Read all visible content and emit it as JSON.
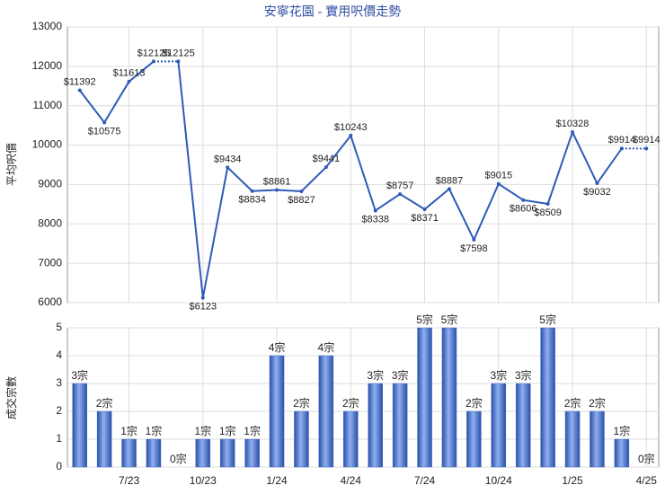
{
  "chart_data": [
    {
      "type": "line",
      "title": "安寧花園 - 實用呎價走勢",
      "y_label": "平均呎價",
      "color": "#2f5bb7",
      "values": [
        11392,
        10575,
        11613,
        12125,
        12125,
        6123,
        9434,
        8834,
        8861,
        8827,
        9441,
        10243,
        8338,
        8757,
        8371,
        8887,
        7598,
        9015,
        8606,
        8509,
        10328,
        9032,
        9914,
        9914
      ],
      "value_labels": [
        "$11392",
        "$10575",
        "$11613",
        "$12125",
        "$12125",
        "$6123",
        "$9434",
        "$8834",
        "$8861",
        "$8827",
        "$9441",
        "$10243",
        "$8338",
        "$8757",
        "$8371",
        "$8887",
        "$7598",
        "$9015",
        "$8606",
        "$8509",
        "$10328",
        "$9032",
        "$9914",
        "$9914"
      ],
      "ylim": [
        6000,
        13000
      ],
      "yticks": [
        6000,
        7000,
        8000,
        9000,
        10000,
        11000,
        12000,
        13000
      ],
      "grid": true
    },
    {
      "type": "bar",
      "y_label": "成交宗數",
      "color": "#3f67c6",
      "categories": [
        null,
        null,
        "7/23",
        null,
        null,
        "10/23",
        null,
        null,
        "1/24",
        null,
        null,
        "4/24",
        null,
        null,
        "7/24",
        null,
        null,
        "10/24",
        null,
        null,
        "1/25",
        null,
        null,
        "4/25"
      ],
      "values": [
        3,
        2,
        1,
        1,
        0,
        1,
        1,
        1,
        4,
        2,
        4,
        2,
        3,
        3,
        5,
        5,
        2,
        3,
        3,
        5,
        2,
        2,
        1,
        0
      ],
      "value_labels": [
        "3宗",
        "2宗",
        "1宗",
        "1宗",
        "0宗",
        "1宗",
        "1宗",
        "1宗",
        "4宗",
        "2宗",
        "4宗",
        "2宗",
        "3宗",
        "3宗",
        "5宗",
        "5宗",
        "2宗",
        "3宗",
        "3宗",
        "5宗",
        "2宗",
        "2宗",
        "1宗",
        "0宗"
      ],
      "ylim": [
        0,
        5
      ],
      "yticks": [
        0,
        1,
        2,
        3,
        4,
        5
      ],
      "grid": true
    }
  ]
}
